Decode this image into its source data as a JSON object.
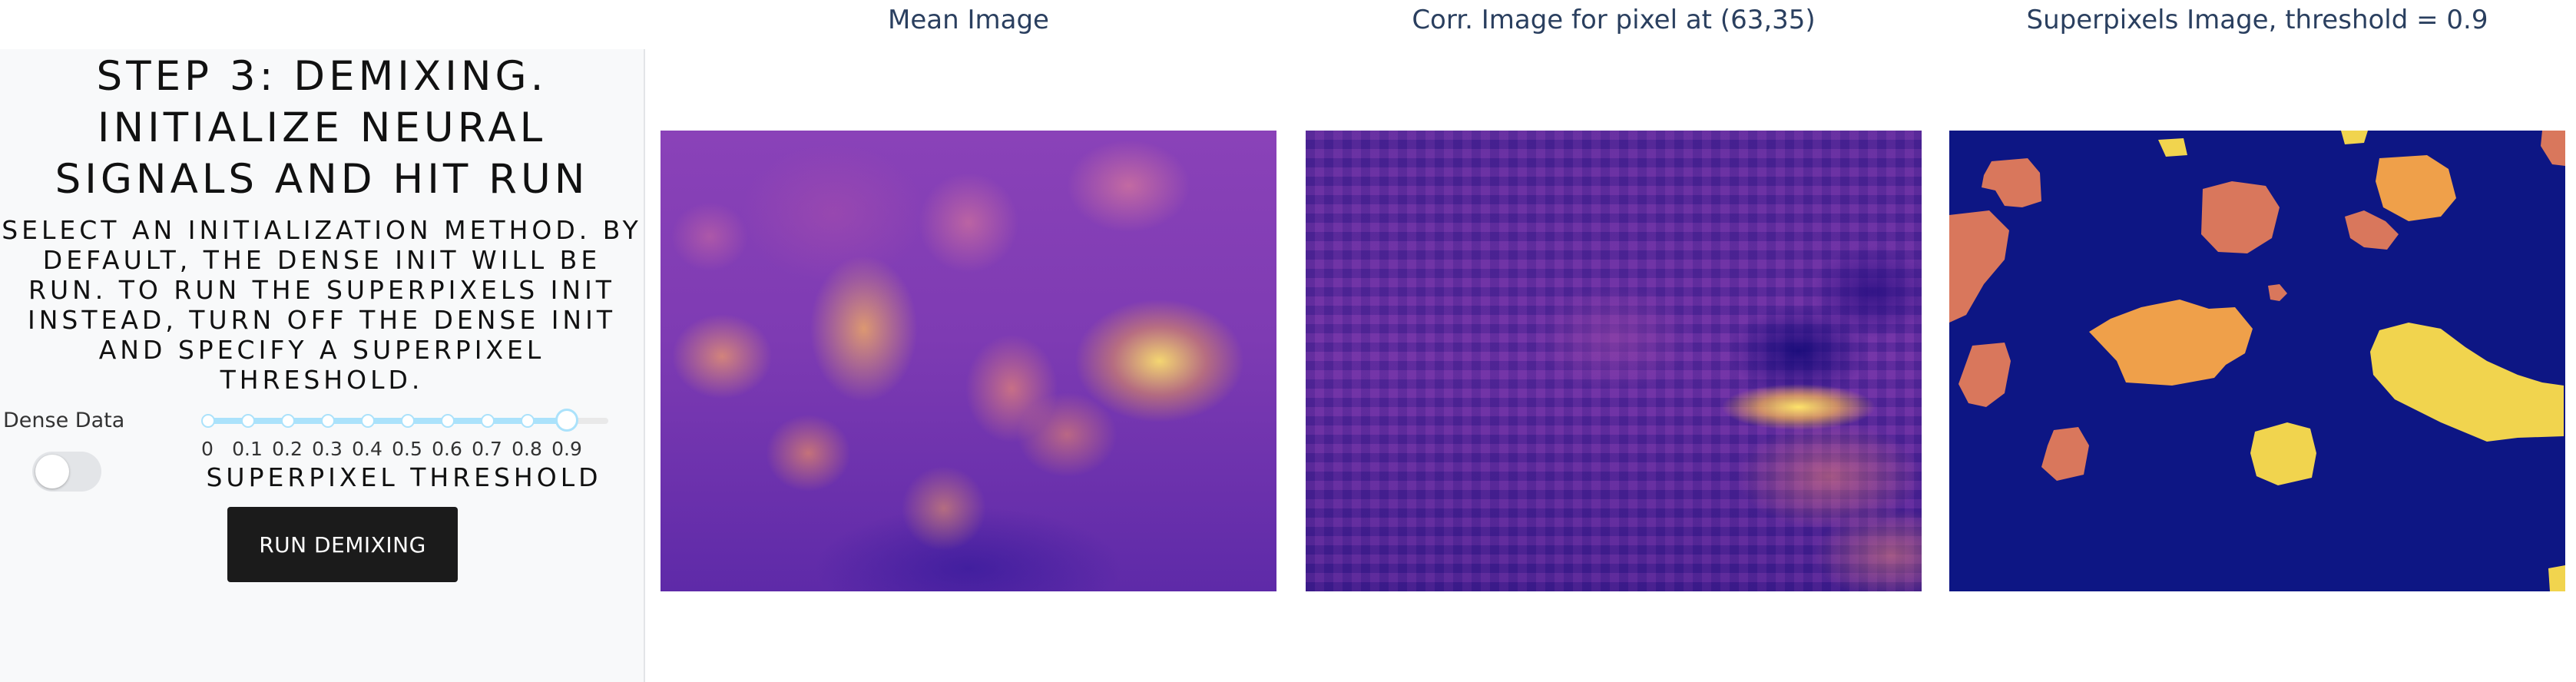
{
  "sidebar": {
    "step_title": "STEP 3: DEMIXING. INITIALIZE NEURAL SIGNALS AND HIT RUN",
    "description": "SELECT AN INITIALIZATION METHOD. BY DEFAULT, THE DENSE INIT WILL BE RUN. TO RUN THE SUPERPIXELS INIT INSTEAD, TURN OFF THE DENSE INIT AND SPECIFY A SUPERPIXEL THRESHOLD.",
    "dense_data_label": "Dense Data",
    "dense_data_on": false,
    "slider": {
      "marks": [
        "0",
        "0.1",
        "0.2",
        "0.3",
        "0.4",
        "0.5",
        "0.6",
        "0.7",
        "0.8",
        "0.9"
      ],
      "min": 0,
      "max": 1,
      "value": 0.9,
      "label": "SUPERPIXEL THRESHOLD",
      "color": "#abe2fb"
    },
    "run_button_label": "RUN DEMIXING"
  },
  "images": [
    {
      "title": "Mean Image",
      "colormap": "plasma"
    },
    {
      "title": "Corr. Image for pixel at (63,35)",
      "colormap": "plasma"
    },
    {
      "title": "Superpixels Image, threshold = 0.9",
      "colormap": "plasma",
      "background": "#0d1684"
    }
  ]
}
